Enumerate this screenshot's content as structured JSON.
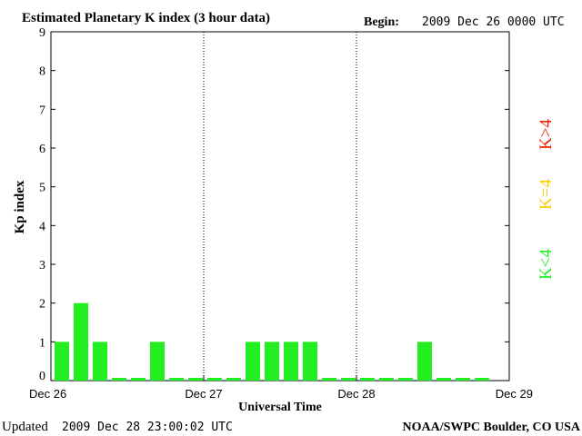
{
  "header": {
    "title": "Estimated Planetary K index (3 hour data)",
    "begin_label": "Begin:",
    "begin_value": "2009 Dec 26 0000 UTC"
  },
  "footer": {
    "updated_label": "Updated",
    "updated_value": "2009 Dec 28 23:00:02 UTC",
    "source": "NOAA/SWPC Boulder, CO USA"
  },
  "legend": {
    "items": [
      {
        "label": "K<4",
        "color": "#22ee22"
      },
      {
        "label": "K=4",
        "color": "#ffcc00"
      },
      {
        "label": "K>4",
        "color": "#ee2200"
      }
    ]
  },
  "chart_data": {
    "type": "bar",
    "title": "Estimated Planetary K index (3 hour data)",
    "xlabel": "Universal Time",
    "ylabel": "Kp index",
    "ylim": [
      0,
      9
    ],
    "yticks": [
      "0",
      "1",
      "2",
      "3",
      "4",
      "5",
      "6",
      "7",
      "8",
      "9"
    ],
    "xticks": [
      "Dec 26",
      "Dec 27",
      "Dec 28",
      "Dec 29"
    ],
    "interval_hours": 3,
    "values": [
      1,
      2,
      1,
      0,
      0,
      1,
      0,
      0,
      0,
      0,
      1,
      1,
      1,
      1,
      0,
      0,
      0,
      0,
      0,
      1,
      0,
      0,
      0
    ],
    "bar_color": "#22ee22",
    "day_separators": "dotted"
  }
}
